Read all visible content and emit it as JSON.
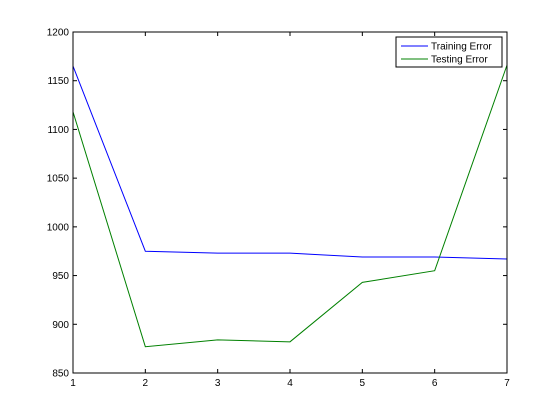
{
  "chart_data": {
    "type": "line",
    "title": "",
    "xlabel": "",
    "ylabel": "",
    "x": [
      1,
      2,
      3,
      4,
      5,
      6,
      7
    ],
    "xlim": [
      1,
      7
    ],
    "ylim": [
      850,
      1200
    ],
    "xticks": [
      1,
      2,
      3,
      4,
      5,
      6,
      7
    ],
    "yticks": [
      850,
      900,
      950,
      1000,
      1050,
      1100,
      1150,
      1200
    ],
    "grid": false,
    "legend_position": "top-right",
    "series": [
      {
        "name": "Training Error",
        "color": "#0000ff",
        "values": [
          1165,
          975,
          973,
          973,
          969,
          969,
          967
        ]
      },
      {
        "name": "Testing Error",
        "color": "#008000",
        "values": [
          1118,
          877,
          884,
          882,
          943,
          955,
          1166
        ]
      }
    ]
  }
}
